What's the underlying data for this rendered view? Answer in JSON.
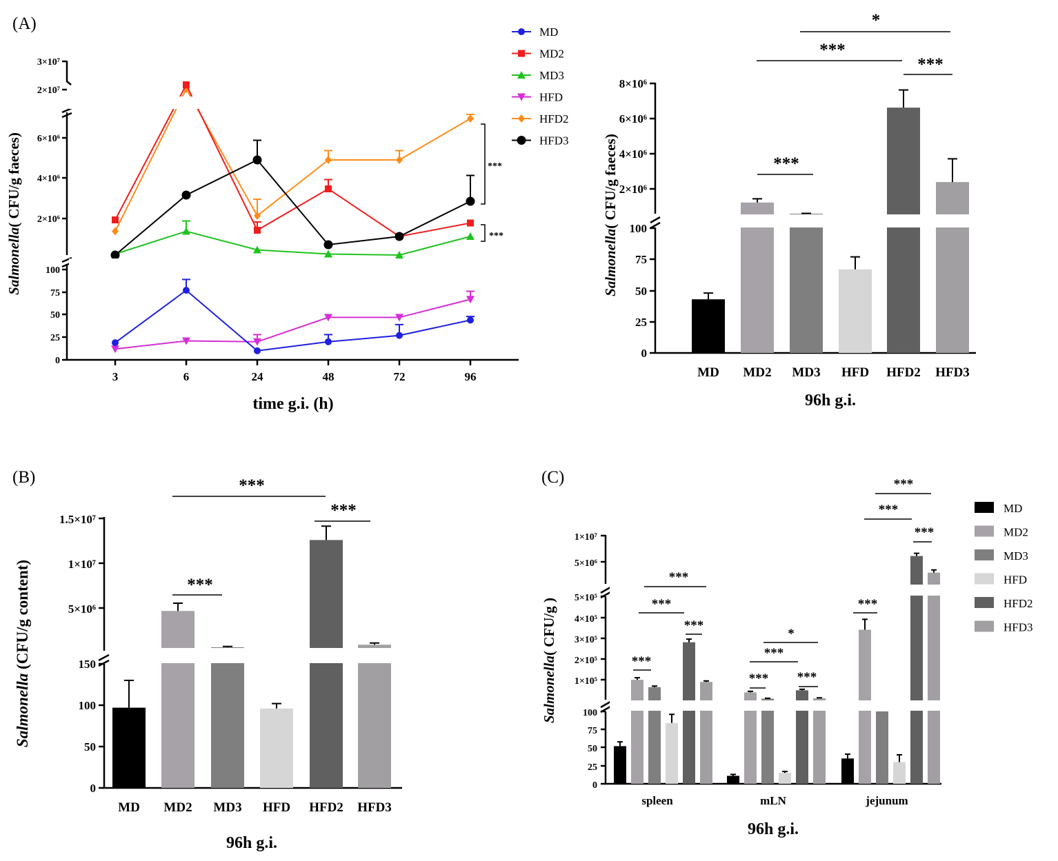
{
  "colors": {
    "MD": "#000000",
    "MD2": "#a7a1a8",
    "MD3": "#7f7f7f",
    "HFD": "#d6d6d6",
    "HFD2": "#606060",
    "HFD3": "#a29fa3",
    "line_MD": "#1f1fe0",
    "line_MD2": "#ef1d1d",
    "line_MD3": "#1fc31f",
    "line_HFD": "#d72ed7",
    "line_HFD2": "#ff8c1a",
    "line_HFD3": "#000000"
  },
  "panelA": {
    "label": "(A)",
    "line": {
      "ylabel_italic": "Salmonella",
      "ylabel_rest": "( CFU/g faeces)",
      "xlabel": "time g.i. (h)",
      "categories": [
        "3",
        "6",
        "24",
        "48",
        "72",
        "96"
      ],
      "yticks_low": [
        "0",
        "25",
        "50",
        "75",
        "100"
      ],
      "yticks_mid": [
        "2×10⁶",
        "4×10⁶",
        "6×10⁶"
      ],
      "yticks_high": [
        "2×10⁷",
        "3×10⁷"
      ],
      "legend": [
        "MD",
        "MD2",
        "MD3",
        "HFD",
        "HFD2",
        "HFD3"
      ],
      "sig": [
        "***",
        "***"
      ]
    },
    "bar": {
      "ylabel_italic": "Salmonella",
      "ylabel_rest": "(  CFU/g faeces)",
      "xlabel": "96h g.i.",
      "categories": [
        "MD",
        "MD2",
        "MD3",
        "HFD",
        "HFD2",
        "HFD3"
      ],
      "yticks_low": [
        "0",
        "25",
        "50",
        "75",
        "100"
      ],
      "yticks_high": [
        "2×10⁶",
        "4×10⁶",
        "6×10⁶",
        "8×10⁶"
      ],
      "sig": [
        "*",
        "***",
        "***",
        "***"
      ]
    }
  },
  "panelB": {
    "label": "(B)",
    "ylabel_italic": "Salmonella",
    "ylabel_rest": " (CFU/g content)",
    "xlabel": "96h g.i.",
    "categories": [
      "MD",
      "MD2",
      "MD3",
      "HFD",
      "HFD2",
      "HFD3"
    ],
    "yticks_low": [
      "0",
      "50",
      "100",
      "150"
    ],
    "yticks_high": [
      "5×10⁶",
      "1×10⁷",
      "1.5×10⁷"
    ],
    "sig": [
      "***",
      "***",
      "***"
    ]
  },
  "panelC": {
    "label": "(C)",
    "ylabel_italic": "Salmonella",
    "ylabel_rest": "( CFU/g )",
    "xlabel": "96h g.i.",
    "groups": [
      "spleen",
      "mLN",
      "jejunum"
    ],
    "yticks_low": [
      "0",
      "25",
      "50",
      "75",
      "100"
    ],
    "yticks_mid": [
      "1×10⁵",
      "2×10⁵",
      "3×10⁵",
      "4×10⁵",
      "5×10⁵"
    ],
    "yticks_high": [
      "5×10⁶",
      "1×10⁷"
    ],
    "legend": [
      "MD",
      "MD2",
      "MD3",
      "HFD",
      "HFD2",
      "HFD3"
    ],
    "sig": [
      "***",
      "***",
      "***",
      "***",
      "*",
      "***",
      "***",
      "***",
      "***",
      "***",
      "***",
      "***"
    ]
  },
  "chart_data": [
    {
      "type": "line",
      "title": "(A)",
      "xlabel": "time g.i. (h)",
      "ylabel": "Salmonella( CFU/g faeces)",
      "categories": [
        "3",
        "6",
        "24",
        "48",
        "72",
        "96"
      ],
      "series": [
        {
          "name": "MD",
          "values": [
            19,
            77,
            10,
            20,
            27,
            44
          ],
          "errors": [
            0,
            12,
            0,
            8,
            12,
            4
          ]
        },
        {
          "name": "MD2",
          "values": [
            1800000,
            23000000,
            1300000,
            3300000,
            1000000,
            1650000
          ],
          "errors": [
            0,
            0,
            400000,
            450000,
            0,
            0
          ]
        },
        {
          "name": "MD3",
          "values": [
            150000,
            1250000,
            350000,
            150000,
            100000,
            1000000
          ],
          "errors": [
            0,
            500000,
            0,
            0,
            0,
            0
          ]
        },
        {
          "name": "HFD",
          "values": [
            12,
            21,
            20,
            47,
            47,
            67
          ],
          "errors": [
            0,
            0,
            8,
            0,
            0,
            9
          ]
        },
        {
          "name": "HFD2",
          "values": [
            1250000,
            21500000,
            2000000,
            4700000,
            4700000,
            6700000
          ],
          "errors": [
            0,
            0,
            800000,
            450000,
            450000,
            200000
          ]
        },
        {
          "name": "HFD3",
          "values": [
            100000,
            3000000,
            4700000,
            600000,
            1000000,
            2700000
          ],
          "errors": [
            0,
            0,
            950000,
            0,
            0,
            1250000
          ]
        }
      ]
    },
    {
      "type": "bar",
      "title": "(A)",
      "xlabel": "96h g.i.",
      "ylabel": "Salmonella(  CFU/g faeces)",
      "categories": [
        "MD",
        "MD2",
        "MD3",
        "HFD",
        "HFD2",
        "HFD3"
      ],
      "values": [
        43,
        1600000,
        1000000,
        67,
        6700000,
        2700000
      ],
      "errors": [
        5,
        200000,
        20000,
        10,
        950000,
        1250000
      ]
    },
    {
      "type": "bar",
      "title": "(B)",
      "xlabel": "96h g.i.",
      "ylabel": "Salmonella (CFU/g content)",
      "categories": [
        "MD",
        "MD2",
        "MD3",
        "HFD",
        "HFD2",
        "HFD3"
      ],
      "values": [
        97,
        4300000,
        100000,
        96,
        12500000,
        400000
      ],
      "errors": [
        33,
        900000,
        100000,
        6,
        1600000,
        200000
      ]
    },
    {
      "type": "bar",
      "title": "(C)",
      "xlabel": "96h g.i.",
      "ylabel": "Salmonella( CFU/g )",
      "categories": [
        "spleen",
        "mLN",
        "jejunum"
      ],
      "series": [
        {
          "name": "MD",
          "values": [
            52,
            11,
            35
          ],
          "errors": [
            6,
            2,
            6
          ]
        },
        {
          "name": "MD2",
          "values": [
            100000,
            40000,
            340000
          ],
          "errors": [
            10000,
            5000,
            50000
          ]
        },
        {
          "name": "MD3",
          "values": [
            65000,
            10000,
            100
          ],
          "errors": [
            5000,
            2000,
            0
          ]
        },
        {
          "name": "HFD",
          "values": [
            84,
            15,
            30
          ],
          "errors": [
            12,
            2,
            10
          ]
        },
        {
          "name": "HFD2",
          "values": [
            280000,
            50000,
            6200000
          ],
          "errors": [
            15000,
            5000,
            500000
          ]
        },
        {
          "name": "HFD3",
          "values": [
            90000,
            12000,
            3100000
          ],
          "errors": [
            5000,
            2000,
            500000
          ]
        }
      ]
    }
  ]
}
